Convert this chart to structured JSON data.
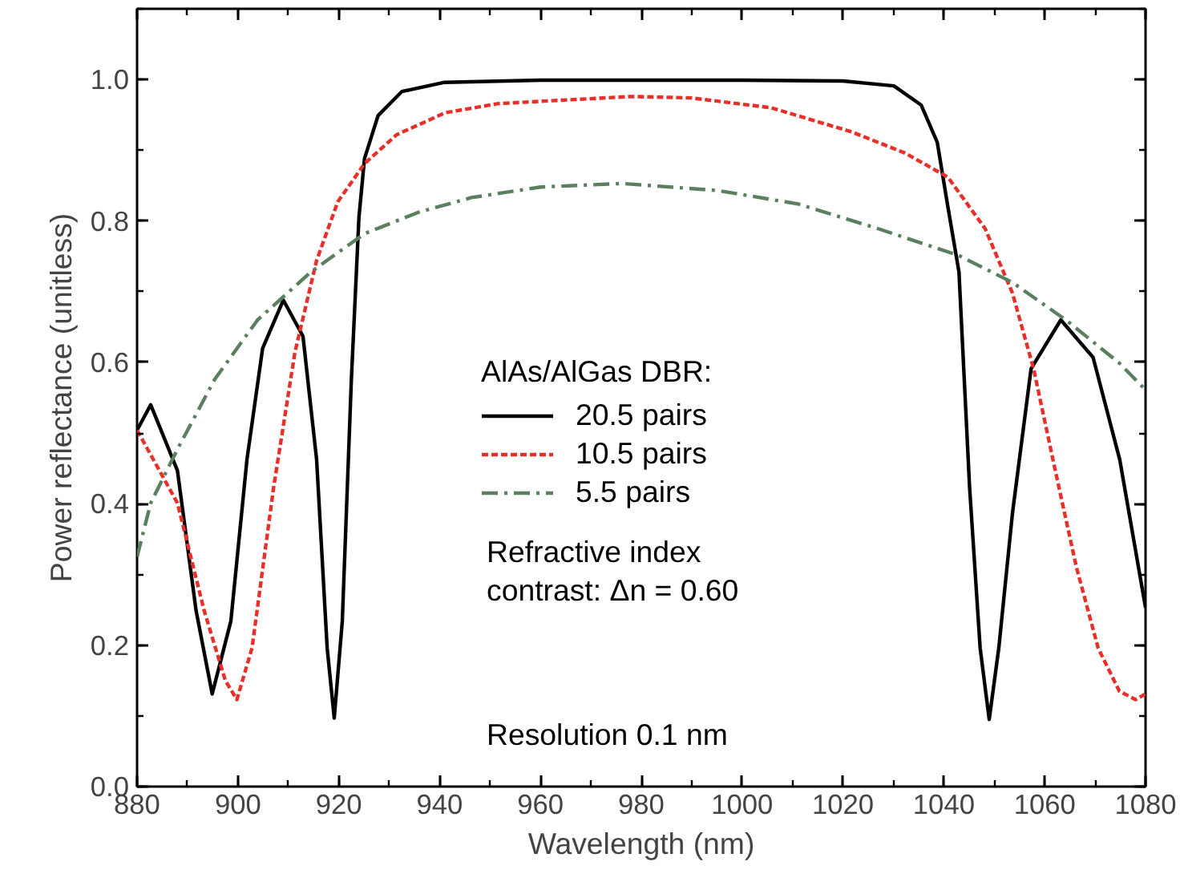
{
  "chart_data": {
    "type": "line",
    "xlabel": "Wavelength (nm)",
    "ylabel": "Power reflectance (unitless)",
    "legend_title": "AlAs/AlGas DBR:",
    "legend": "center",
    "xlim": [
      880,
      1080
    ],
    "xticks": [
      880,
      900,
      920,
      940,
      960,
      980,
      1000,
      1020,
      1040,
      1060,
      1080
    ],
    "ylim": [
      0,
      1.1
    ],
    "yticks": [
      {
        "value": 0,
        "label": "0.0"
      },
      {
        "value": 0.2,
        "label": "0.2"
      },
      {
        "value": 0.4,
        "label": "0.4"
      },
      {
        "value": 0.6,
        "label": "0.6"
      },
      {
        "value": 0.8,
        "label": "0.8"
      },
      {
        "value": 1.0,
        "label": "1.0"
      }
    ],
    "grid": false,
    "annotations": [
      "Refractive index\ncontrast: Δn = 0.60",
      "Resolution 0.1 nm"
    ],
    "series": [
      {
        "name": "20.5 pairs",
        "color": "#000000",
        "line_style": "solid",
        "x": [
          880,
          882.7,
          888,
          891.7,
          894.9,
          898.6,
          901.8,
          904.9,
          909,
          912.9,
          915.6,
          917.7,
          919.1,
          920.7,
          922.5,
          924,
          925.1,
          927.8,
          932.5,
          941,
          960,
          1000,
          1020,
          1030.1,
          1035.5,
          1038.7,
          1040.8,
          1043,
          1045.1,
          1047.2,
          1049,
          1050.9,
          1053.6,
          1057.3,
          1063.2,
          1069.6,
          1074.9,
          1080
        ],
        "values": [
          0.504,
          0.54,
          0.447,
          0.249,
          0.131,
          0.234,
          0.463,
          0.62,
          0.688,
          0.637,
          0.463,
          0.196,
          0.097,
          0.234,
          0.576,
          0.805,
          0.888,
          0.949,
          0.983,
          0.996,
          0.999,
          0.999,
          0.998,
          0.991,
          0.964,
          0.911,
          0.82,
          0.728,
          0.424,
          0.196,
          0.095,
          0.196,
          0.386,
          0.591,
          0.66,
          0.607,
          0.462,
          0.253
        ]
      },
      {
        "name": "10.5 pairs",
        "color": "#e8302a",
        "line_style": "dashed",
        "x": [
          880,
          888,
          893.3,
          897.5,
          899.8,
          902.8,
          907.1,
          911.3,
          915.6,
          919.8,
          925.1,
          931.5,
          941.1,
          951.7,
          978,
          989.9,
          1005.8,
          1021.7,
          1032.3,
          1040.8,
          1048.2,
          1053.6,
          1057.8,
          1062.1,
          1066.3,
          1070.6,
          1074.8,
          1078,
          1080
        ],
        "values": [
          0.504,
          0.401,
          0.249,
          0.15,
          0.123,
          0.196,
          0.424,
          0.614,
          0.744,
          0.827,
          0.881,
          0.922,
          0.953,
          0.966,
          0.976,
          0.974,
          0.96,
          0.926,
          0.896,
          0.862,
          0.789,
          0.698,
          0.591,
          0.447,
          0.31,
          0.196,
          0.135,
          0.123,
          0.131
        ]
      },
      {
        "name": "5.5 pairs",
        "color": "#5a8060",
        "line_style": "dashdot",
        "x": [
          880,
          882.7,
          888,
          895.4,
          903.9,
          914.5,
          925.1,
          935.7,
          946.3,
          960.1,
          976.1,
          995.2,
          1011.1,
          1027,
          1043,
          1053.6,
          1064.2,
          1074.8,
          1080
        ],
        "values": [
          0.325,
          0.401,
          0.477,
          0.576,
          0.66,
          0.728,
          0.782,
          0.812,
          0.833,
          0.848,
          0.853,
          0.843,
          0.824,
          0.789,
          0.751,
          0.713,
          0.66,
          0.599,
          0.561
        ]
      }
    ]
  }
}
